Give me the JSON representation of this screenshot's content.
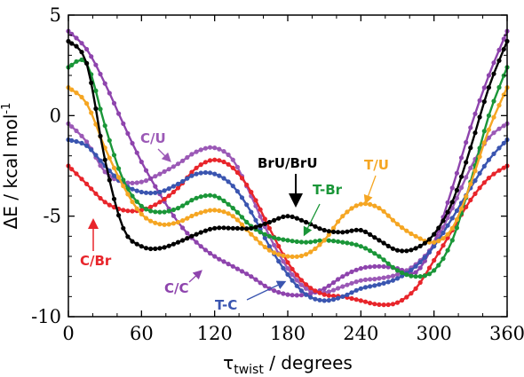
{
  "chart_data": {
    "type": "line",
    "xlabel": {
      "main": "τ",
      "sub": "twist",
      "rest": " / degrees"
    },
    "ylabel": {
      "main": "ΔE / kcal mol",
      "sup": "-1"
    },
    "xlim": [
      0,
      360
    ],
    "ylim": [
      -10,
      5
    ],
    "xticks": [
      "0",
      "60",
      "120",
      "180",
      "240",
      "300",
      "360"
    ],
    "yticks": [
      "5",
      "0",
      "-5",
      "-10"
    ],
    "grid": false,
    "series": [
      {
        "name": "C/U",
        "color": "#9b59b6",
        "label": "C/U",
        "points": [
          [
            0,
            -0.4
          ],
          [
            15,
            -1.3
          ],
          [
            30,
            -2.8
          ],
          [
            45,
            -3.3
          ],
          [
            60,
            -3.3
          ],
          [
            75,
            -2.9
          ],
          [
            90,
            -2.4
          ],
          [
            105,
            -1.8
          ],
          [
            120,
            -1.6
          ],
          [
            135,
            -2.2
          ],
          [
            150,
            -4.0
          ],
          [
            165,
            -6.0
          ],
          [
            180,
            -7.6
          ],
          [
            195,
            -8.6
          ],
          [
            210,
            -8.8
          ],
          [
            225,
            -8.5
          ],
          [
            240,
            -8.2
          ],
          [
            255,
            -8.1
          ],
          [
            270,
            -7.9
          ],
          [
            285,
            -7.4
          ],
          [
            300,
            -6.4
          ],
          [
            315,
            -4.6
          ],
          [
            330,
            -2.6
          ],
          [
            345,
            -1.1
          ],
          [
            360,
            -0.4
          ]
        ]
      },
      {
        "name": "C/C",
        "color": "#8e44ad",
        "label": "C/C",
        "points": [
          [
            0,
            4.2
          ],
          [
            15,
            3.3
          ],
          [
            30,
            1.6
          ],
          [
            45,
            -0.4
          ],
          [
            60,
            -2.3
          ],
          [
            75,
            -3.9
          ],
          [
            90,
            -5.3
          ],
          [
            105,
            -6.3
          ],
          [
            120,
            -7.0
          ],
          [
            135,
            -7.5
          ],
          [
            150,
            -8.0
          ],
          [
            165,
            -8.6
          ],
          [
            180,
            -8.9
          ],
          [
            195,
            -8.9
          ],
          [
            210,
            -8.6
          ],
          [
            225,
            -8.0
          ],
          [
            240,
            -7.6
          ],
          [
            255,
            -7.5
          ],
          [
            270,
            -7.6
          ],
          [
            285,
            -7.8
          ],
          [
            300,
            -6.3
          ],
          [
            315,
            -3.6
          ],
          [
            330,
            -0.6
          ],
          [
            345,
            2.0
          ],
          [
            360,
            4.2
          ]
        ]
      },
      {
        "name": "C/Br",
        "color": "#e8252b",
        "label": "C/Br",
        "points": [
          [
            0,
            -2.5
          ],
          [
            15,
            -3.4
          ],
          [
            30,
            -4.3
          ],
          [
            45,
            -4.7
          ],
          [
            60,
            -4.7
          ],
          [
            75,
            -4.3
          ],
          [
            90,
            -3.6
          ],
          [
            105,
            -2.6
          ],
          [
            120,
            -2.2
          ],
          [
            135,
            -2.6
          ],
          [
            150,
            -3.8
          ],
          [
            165,
            -5.6
          ],
          [
            180,
            -7.3
          ],
          [
            195,
            -8.4
          ],
          [
            210,
            -8.9
          ],
          [
            225,
            -9.0
          ],
          [
            240,
            -9.2
          ],
          [
            255,
            -9.4
          ],
          [
            270,
            -9.3
          ],
          [
            285,
            -8.6
          ],
          [
            300,
            -7.2
          ],
          [
            315,
            -5.7
          ],
          [
            330,
            -4.2
          ],
          [
            345,
            -3.1
          ],
          [
            360,
            -2.5
          ]
        ]
      },
      {
        "name": "T-C",
        "color": "#3a55b0",
        "label": "T-C",
        "points": [
          [
            0,
            -1.2
          ],
          [
            15,
            -1.5
          ],
          [
            30,
            -2.5
          ],
          [
            45,
            -3.4
          ],
          [
            60,
            -3.8
          ],
          [
            75,
            -3.8
          ],
          [
            90,
            -3.4
          ],
          [
            105,
            -2.9
          ],
          [
            120,
            -2.9
          ],
          [
            135,
            -3.5
          ],
          [
            150,
            -4.8
          ],
          [
            165,
            -6.5
          ],
          [
            180,
            -7.9
          ],
          [
            195,
            -8.9
          ],
          [
            210,
            -9.2
          ],
          [
            225,
            -9.0
          ],
          [
            240,
            -8.6
          ],
          [
            255,
            -8.4
          ],
          [
            270,
            -8.1
          ],
          [
            285,
            -7.5
          ],
          [
            300,
            -6.5
          ],
          [
            315,
            -5.1
          ],
          [
            330,
            -3.6
          ],
          [
            345,
            -2.2
          ],
          [
            360,
            -1.2
          ]
        ]
      },
      {
        "name": "T-Br",
        "color": "#1a9638",
        "label": "T-Br",
        "points": [
          [
            0,
            2.4
          ],
          [
            15,
            2.6
          ],
          [
            30,
            -0.5
          ],
          [
            45,
            -3.2
          ],
          [
            60,
            -4.5
          ],
          [
            75,
            -4.8
          ],
          [
            90,
            -4.6
          ],
          [
            105,
            -4.1
          ],
          [
            120,
            -4.0
          ],
          [
            135,
            -4.6
          ],
          [
            150,
            -5.5
          ],
          [
            165,
            -6.0
          ],
          [
            180,
            -6.2
          ],
          [
            195,
            -6.3
          ],
          [
            210,
            -6.2
          ],
          [
            225,
            -6.3
          ],
          [
            240,
            -6.5
          ],
          [
            255,
            -7.0
          ],
          [
            270,
            -7.7
          ],
          [
            285,
            -8.0
          ],
          [
            300,
            -7.7
          ],
          [
            315,
            -6.2
          ],
          [
            330,
            -3.3
          ],
          [
            345,
            0.0
          ],
          [
            360,
            2.4
          ]
        ]
      },
      {
        "name": "T/U",
        "color": "#f5a623",
        "label": "T/U",
        "points": [
          [
            0,
            1.4
          ],
          [
            15,
            0.6
          ],
          [
            30,
            -1.6
          ],
          [
            45,
            -3.5
          ],
          [
            60,
            -4.9
          ],
          [
            75,
            -5.4
          ],
          [
            90,
            -5.3
          ],
          [
            105,
            -4.9
          ],
          [
            120,
            -4.7
          ],
          [
            135,
            -5.0
          ],
          [
            150,
            -5.9
          ],
          [
            165,
            -6.7
          ],
          [
            180,
            -7.0
          ],
          [
            195,
            -6.9
          ],
          [
            210,
            -6.2
          ],
          [
            225,
            -5.0
          ],
          [
            240,
            -4.4
          ],
          [
            255,
            -4.6
          ],
          [
            270,
            -5.4
          ],
          [
            285,
            -6.0
          ],
          [
            300,
            -6.3
          ],
          [
            315,
            -5.6
          ],
          [
            330,
            -3.4
          ],
          [
            345,
            -0.7
          ],
          [
            360,
            1.4
          ]
        ]
      },
      {
        "name": "BrU/BrU",
        "color": "#000000",
        "label": "BrU/BrU",
        "points": [
          [
            0,
            3.7
          ],
          [
            15,
            2.6
          ],
          [
            30,
            -2.2
          ],
          [
            45,
            -5.6
          ],
          [
            60,
            -6.5
          ],
          [
            75,
            -6.6
          ],
          [
            90,
            -6.3
          ],
          [
            105,
            -5.9
          ],
          [
            120,
            -5.6
          ],
          [
            135,
            -5.6
          ],
          [
            150,
            -5.6
          ],
          [
            165,
            -5.3
          ],
          [
            180,
            -5.0
          ],
          [
            195,
            -5.3
          ],
          [
            210,
            -5.7
          ],
          [
            225,
            -5.8
          ],
          [
            240,
            -5.7
          ],
          [
            255,
            -6.2
          ],
          [
            270,
            -6.7
          ],
          [
            285,
            -6.6
          ],
          [
            300,
            -5.9
          ],
          [
            315,
            -4.3
          ],
          [
            330,
            -1.6
          ],
          [
            345,
            1.4
          ],
          [
            360,
            3.7
          ]
        ]
      }
    ],
    "annotations": [
      {
        "text": "C/U",
        "series": "C/U",
        "color": "#9b59b6"
      },
      {
        "text": "C/C",
        "series": "C/C",
        "color": "#8e44ad"
      },
      {
        "text": "C/Br",
        "series": "C/Br",
        "color": "#e8252b"
      },
      {
        "text": "T-C",
        "series": "T-C",
        "color": "#3a55b0"
      },
      {
        "text": "T-Br",
        "series": "T-Br",
        "color": "#1a9638"
      },
      {
        "text": "T/U",
        "series": "T/U",
        "color": "#f5a623"
      },
      {
        "text": "BrU/BrU",
        "series": "BrU/BrU",
        "color": "#000000"
      }
    ]
  }
}
